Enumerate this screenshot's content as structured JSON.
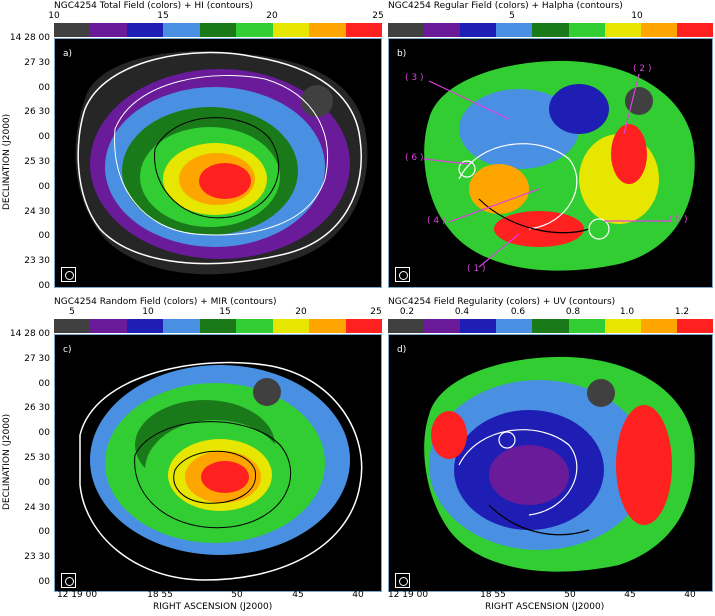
{
  "colorbar_colors": [
    "#404040",
    "#6a1b9a",
    "#1e1eb4",
    "#4a90e2",
    "#1a7a1a",
    "#32cd32",
    "#e6e600",
    "#ffa500",
    "#ff2020"
  ],
  "panels": {
    "a": {
      "title": "NGC4254  Total Field (colors) + HI (contours)",
      "ticks": [
        "10",
        "15",
        "20",
        "25"
      ],
      "label": "a)"
    },
    "b": {
      "title": "NGC4254  Regular Field (colors) + Halpha (contours)",
      "ticks": [
        "5",
        "10"
      ],
      "label": "b)",
      "annotations": [
        "( 3 )",
        "( 2 )",
        "( 6 )",
        "( 4 )",
        "( 5 )",
        "( 1 )"
      ]
    },
    "c": {
      "title": "NGC4254  Random Field (colors) + MIR (contours)",
      "ticks": [
        "5",
        "10",
        "15",
        "20",
        "25"
      ],
      "label": "c)"
    },
    "d": {
      "title": "NGC4254  Field Regularity (colors) + UV (contours)",
      "ticks": [
        "0.2",
        "0.4",
        "0.6",
        "0.8",
        "1.0",
        "1.2"
      ],
      "label": "d)"
    }
  },
  "axes": {
    "ylabel": "DECLINATION (J2000)",
    "xlabel": "RIGHT ASCENSION (J2000)",
    "yticks": [
      "14 28 00",
      "27 30",
      "00",
      "26 30",
      "00",
      "25 30",
      "00",
      "24 30",
      "00",
      "23 30",
      "00"
    ],
    "xticks": [
      "12 19 00",
      "18 55",
      "50",
      "45",
      "40"
    ]
  }
}
